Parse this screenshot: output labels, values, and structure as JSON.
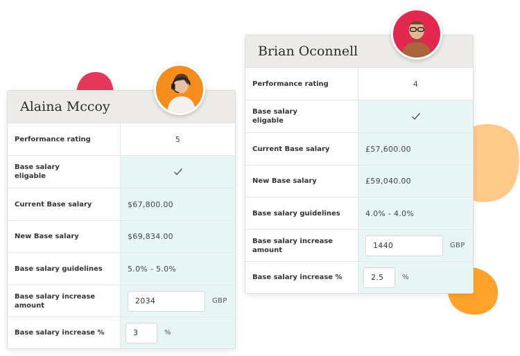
{
  "colors": {
    "tint": "#e7f5f5",
    "header_bg": "#ecebe8",
    "blob_red": "#e5385a",
    "blob_peach": "#ffc98a",
    "blob_orange": "#ffa22b"
  },
  "cards": [
    {
      "name": "Alaina Mccoy",
      "avatar_icon": "person-headset-avatar",
      "rows": {
        "performance_rating": {
          "label": "Performance rating",
          "value": "5"
        },
        "eligible": {
          "label": "Base salary\neligable",
          "icon": "check-icon"
        },
        "current": {
          "label": "Current Base salary",
          "value": "$67,800.00"
        },
        "new": {
          "label": "New Base salary",
          "value": "$69,834.00"
        },
        "guidelines": {
          "label": "Base salary guidelines",
          "value": "5.0% - 5.0%"
        },
        "increase_amount": {
          "label": "Base salary increase\namount",
          "value": "2034",
          "unit": "GBP"
        },
        "increase_pct": {
          "label": "Base salary increase %",
          "value": "3",
          "unit": "%"
        }
      }
    },
    {
      "name": "Brian Oconnell",
      "avatar_icon": "person-glasses-avatar",
      "rows": {
        "performance_rating": {
          "label": "Performance rating",
          "value": "4"
        },
        "eligible": {
          "label": "Base salary\neligable",
          "icon": "check-icon"
        },
        "current": {
          "label": "Current Base salary",
          "value": "£57,600.00"
        },
        "new": {
          "label": "New Base salary",
          "value": "£59,040.00"
        },
        "guidelines": {
          "label": "Base salary guidelines",
          "value": "4.0% - 4.0%"
        },
        "increase_amount": {
          "label": "Base salary increase\namount",
          "value": "1440",
          "unit": "GBP"
        },
        "increase_pct": {
          "label": "Base salary increase %",
          "value": "2.5",
          "unit": "%"
        }
      }
    }
  ]
}
